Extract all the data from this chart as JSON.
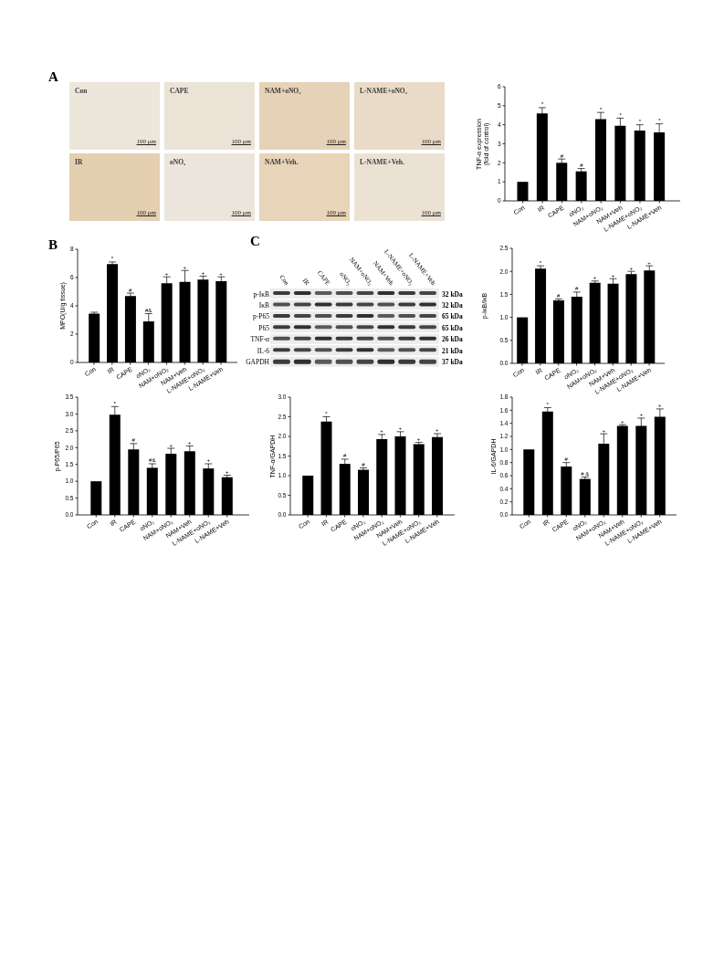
{
  "chart_data": [
    {
      "type": "other",
      "title": "A",
      "categories": [
        "Con",
        "CAPE",
        "NAM+oNO₂",
        "L-NAME+oNO₂",
        "IR",
        "oNO₂",
        "NAM+Veh.",
        "L-NAME+Veh."
      ],
      "annotations": [
        "100 μm",
        "100 μm",
        "100 μm",
        "100 μm",
        "100 μm",
        "100 μm",
        "100 μm",
        "100 μm"
      ]
    },
    {
      "type": "bar",
      "ylabel": "TNF-α expression\n(fold of control)",
      "categories": [
        "Con",
        "IR",
        "CAPE",
        "oNO₂",
        "NAM+oNO₂",
        "NAM+Veh",
        "L-NAME+oNO₂",
        "L-NAME+Veh"
      ],
      "values": [
        1.0,
        4.6,
        2.0,
        1.55,
        4.3,
        3.95,
        3.7,
        3.6
      ],
      "errors": [
        null,
        0.3,
        0.2,
        0.15,
        0.35,
        0.4,
        0.3,
        0.45
      ],
      "color": "#000000",
      "ylim": [
        0,
        6
      ],
      "yticks": [
        0,
        1,
        2,
        3,
        4,
        5,
        6
      ],
      "annotations": [
        {
          "text": "*",
          "x": "IR",
          "y": 4.9
        },
        {
          "text": "#",
          "x": "CAPE",
          "y": 2.2
        },
        {
          "text": "#",
          "x": "oNO₂",
          "y": 1.7
        },
        {
          "text": "*",
          "x": "NAM+oNO₂",
          "y": 4.65
        },
        {
          "text": "*",
          "x": "NAM+Veh",
          "y": 4.35
        },
        {
          "text": "*",
          "x": "L-NAME+oNO₂",
          "y": 4.0
        },
        {
          "text": "*",
          "x": "L-NAME+Veh",
          "y": 4.05
        }
      ]
    },
    {
      "type": "bar",
      "title": "B",
      "ylabel": "MPO(U/g tissue)",
      "categories": [
        "Con",
        "IR",
        "CAPE",
        "oNO₂",
        "NAM+oNO₂",
        "NAM+Veh",
        "L-NAME+oNO₂",
        "L-NAME+Veh"
      ],
      "values": [
        3.45,
        6.95,
        4.7,
        2.9,
        5.6,
        5.7,
        5.85,
        5.75
      ],
      "errors": [
        0.1,
        0.15,
        0.2,
        0.55,
        0.45,
        0.8,
        0.25,
        0.3
      ],
      "color": "#000000",
      "ylim": [
        0,
        8
      ],
      "yticks": [
        0,
        2,
        4,
        6,
        8
      ],
      "annotations": [
        {
          "text": "*",
          "x": "IR",
          "y": 7.1
        },
        {
          "text": "#",
          "x": "CAPE",
          "y": 4.9
        },
        {
          "text": "#&",
          "x": "oNO₂",
          "y": 3.45
        },
        {
          "text": "+",
          "x": "NAM+oNO₂",
          "y": 6.05
        },
        {
          "text": "+",
          "x": "NAM+Veh",
          "y": 6.5
        },
        {
          "text": "+",
          "x": "L-NAME+oNO₂",
          "y": 6.1
        },
        {
          "text": "+",
          "x": "L-NAME+Veh",
          "y": 6.05
        }
      ]
    },
    {
      "type": "other",
      "title": "C",
      "categories": [
        "Con",
        "IR",
        "CAPE",
        "oNO₂",
        "NAM+oNO₂",
        "NAM+Veh",
        "L-NAME+oNO₂",
        "L-NAME+Veh"
      ],
      "y_categories": [
        "p-IκB",
        "IκB",
        "p-P65",
        "P65",
        "TNF-α",
        "IL-6",
        "GAPDH"
      ],
      "y2_categories": [
        "32 kDa",
        "32 kDa",
        "65 kDa",
        "65 kDa",
        "26 kDa",
        "21 kDa",
        "37 kDa"
      ]
    },
    {
      "type": "bar",
      "ylabel": "p-IκB/IκB",
      "categories": [
        "Con",
        "IR",
        "CAPE",
        "oNO₂",
        "NAM+oNO₂",
        "NAM+Veh",
        "L-NAME+oNO₂",
        "L-NAME+Veh"
      ],
      "values": [
        1.0,
        2.06,
        1.37,
        1.45,
        1.75,
        1.73,
        1.94,
        2.02
      ],
      "errors": [
        null,
        0.06,
        0.03,
        0.1,
        0.04,
        0.11,
        0.06,
        0.1
      ],
      "color": "#000000",
      "ylim": [
        0,
        2.5
      ],
      "yticks": [
        {
          "value": 0,
          "label": "0.0"
        },
        0.5,
        {
          "value": 1,
          "label": "1.0"
        },
        1.5,
        {
          "value": 2,
          "label": "2.0"
        },
        2.5
      ],
      "annotations": [
        {
          "text": "*",
          "x": "IR",
          "y": 2.12
        },
        {
          "text": "#",
          "x": "CAPE",
          "y": 1.4
        },
        {
          "text": "#",
          "x": "oNO₂",
          "y": 1.55
        },
        {
          "text": "+",
          "x": "NAM+oNO₂",
          "y": 1.79
        },
        {
          "text": "+",
          "x": "NAM+Veh",
          "y": 1.84
        },
        {
          "text": "+",
          "x": "L-NAME+oNO₂",
          "y": 2.0
        },
        {
          "text": "+",
          "x": "L-NAME+Veh",
          "y": 2.12
        }
      ]
    },
    {
      "type": "bar",
      "ylabel": "p-P65/P65",
      "categories": [
        "Con",
        "IR",
        "CAPE",
        "oNO₂",
        "NAM+oNO₂",
        "NAM+Veh",
        "L-NAME+oNO₂",
        "L-NAME+Veh"
      ],
      "values": [
        1.0,
        2.98,
        1.95,
        1.4,
        1.82,
        1.89,
        1.38,
        1.12
      ],
      "errors": [
        null,
        0.24,
        0.17,
        0.12,
        0.16,
        0.16,
        0.14,
        0.06
      ],
      "color": "#000000",
      "ylim": [
        0,
        3.5
      ],
      "yticks": [
        {
          "value": 0,
          "label": "0.0"
        },
        0.5,
        {
          "value": 1,
          "label": "1.0"
        },
        1.5,
        {
          "value": 2,
          "label": "2.0"
        },
        2.5,
        {
          "value": 3,
          "label": "3.0"
        },
        3.5
      ],
      "annotations": [
        {
          "text": "*",
          "x": "IR",
          "y": 3.22
        },
        {
          "text": "#",
          "x": "CAPE",
          "y": 2.12
        },
        {
          "text": "#&",
          "x": "oNO₂",
          "y": 1.52
        },
        {
          "text": "+",
          "x": "NAM+oNO₂",
          "y": 1.98
        },
        {
          "text": "+",
          "x": "NAM+Veh",
          "y": 2.05
        },
        {
          "text": "+",
          "x": "L-NAME+oNO₂",
          "y": 1.52
        },
        {
          "text": "+",
          "x": "L-NAME+Veh",
          "y": 1.18
        }
      ]
    },
    {
      "type": "bar",
      "ylabel": "TNF-α/GAPDH",
      "categories": [
        "Con",
        "IR",
        "CAPE",
        "oNO₂",
        "NAM+oNO₂",
        "NAM+Veh",
        "L-NAME+oNO₂",
        "L-NAME+Veh"
      ],
      "values": [
        1.0,
        2.38,
        1.3,
        1.15,
        1.93,
        2.0,
        1.8,
        1.98
      ],
      "errors": [
        null,
        0.12,
        0.12,
        0.05,
        0.12,
        0.12,
        0.05,
        0.09
      ],
      "color": "#000000",
      "ylim": [
        0,
        3
      ],
      "yticks": [
        {
          "value": 0,
          "label": "0.0"
        },
        0.5,
        {
          "value": 1,
          "label": "1.0"
        },
        1.5,
        {
          "value": 2,
          "label": "2.0"
        },
        2.5,
        {
          "value": 3,
          "label": "3.0"
        }
      ],
      "annotations": [
        {
          "text": "*",
          "x": "IR",
          "y": 2.5
        },
        {
          "text": "#",
          "x": "CAPE",
          "y": 1.42
        },
        {
          "text": "#",
          "x": "oNO₂",
          "y": 1.2
        },
        {
          "text": "+",
          "x": "NAM+oNO₂",
          "y": 2.05
        },
        {
          "text": "+",
          "x": "NAM+Veh",
          "y": 2.12
        },
        {
          "text": "+",
          "x": "L-NAME+oNO₂",
          "y": 1.85
        },
        {
          "text": "+",
          "x": "L-NAME+Veh",
          "y": 2.07
        }
      ]
    },
    {
      "type": "bar",
      "ylabel": "IL-6/GAPDH",
      "categories": [
        "Con",
        "IR",
        "CAPE",
        "oNO₂",
        "NAM+oNO₂",
        "NAM+Veh",
        "L-NAME+oNO₂",
        "L-NAME+Veh"
      ],
      "values": [
        1.0,
        1.58,
        0.74,
        0.55,
        1.09,
        1.36,
        1.36,
        1.5
      ],
      "errors": [
        null,
        0.06,
        0.06,
        0.03,
        0.15,
        0.02,
        0.12,
        0.12
      ],
      "color": "#000000",
      "ylim": [
        0,
        1.8
      ],
      "yticks": [
        {
          "value": 0,
          "label": "0.0"
        },
        0.2,
        0.4,
        0.6,
        0.8,
        {
          "value": 1,
          "label": "1.0"
        },
        1.2,
        1.4,
        1.6,
        1.8
      ],
      "annotations": [
        {
          "text": "*",
          "x": "IR",
          "y": 1.64
        },
        {
          "text": "#",
          "x": "CAPE",
          "y": 0.8
        },
        {
          "text": "# &",
          "x": "oNO₂",
          "y": 0.58
        },
        {
          "text": "+",
          "x": "NAM+oNO₂",
          "y": 1.24
        },
        {
          "text": "+",
          "x": "NAM+Veh",
          "y": 1.38
        },
        {
          "text": "+",
          "x": "L-NAME+oNO₂",
          "y": 1.48
        },
        {
          "text": "+",
          "x": "L-NAME+Veh",
          "y": 1.62
        }
      ]
    }
  ]
}
